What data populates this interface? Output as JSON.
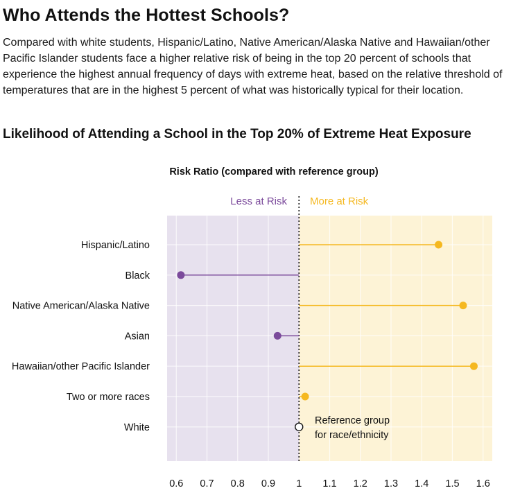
{
  "headline": "Who Attends the Hottest Schools?",
  "dek": "Compared with white students, Hispanic/Latino, Native American/Alaska Native and Hawaiian/other Pacific Islander students face a higher relative risk of being in the top 20 percent of schools that experience the highest annual frequency of days with extreme heat, based on the relative threshold of temperatures that are in the highest 5 percent of what was historically typical for their location.",
  "chart_title": "Likelihood of Attending a School in the Top 20% of Extreme Heat Exposure",
  "colors": {
    "less": "#7b4a9b",
    "more": "#f5b820",
    "less_bg": "#e7e1ee",
    "more_bg": "#fdf3d6"
  },
  "chart_data": {
    "type": "dot-plot",
    "xlabel": "Risk Ratio (compared with reference group)",
    "xlim": [
      0.57,
      1.63
    ],
    "reference": 1.0,
    "xticks": [
      0.6,
      0.7,
      0.8,
      0.9,
      1,
      1.1,
      1.2,
      1.3,
      1.4,
      1.5,
      1.6
    ],
    "xtick_labels": [
      "0.6",
      "0.7",
      "0.8",
      "0.9",
      "1",
      "1.1",
      "1.2",
      "1.3",
      "1.4",
      "1.5",
      "1.6"
    ],
    "zone_labels": {
      "less": "Less at Risk",
      "more": "More at Risk"
    },
    "categories": [
      "Hispanic/Latino",
      "Black",
      "Native American/Alaska Native",
      "Asian",
      "Hawaiian/other Pacific Islander",
      "Two or more races",
      "White"
    ],
    "values": [
      1.455,
      0.615,
      1.535,
      0.93,
      1.57,
      1.02,
      1.0
    ],
    "annotation": {
      "category": "White",
      "lines": [
        "Reference group",
        "for race/ethnicity"
      ]
    }
  }
}
